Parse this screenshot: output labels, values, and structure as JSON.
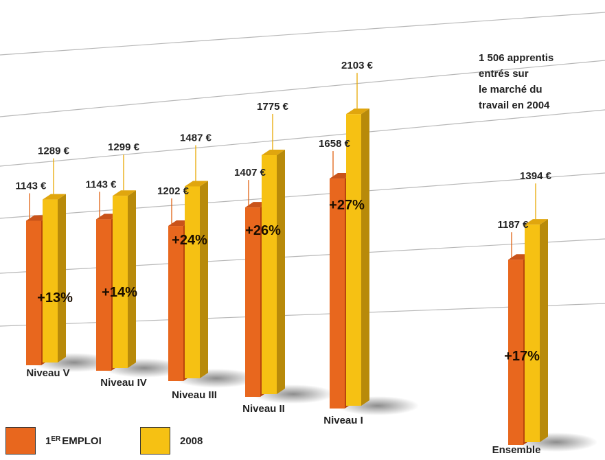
{
  "chart_data": {
    "type": "bar",
    "categories": [
      "Niveau V",
      "Niveau IV",
      "Niveau III",
      "Niveau II",
      "Niveau I",
      "Ensemble"
    ],
    "series": [
      {
        "name": "1ER EMPLOI",
        "values": [
          1143,
          1143,
          1202,
          1407,
          1658,
          1187
        ],
        "labels": [
          "1143 €",
          "1143 €",
          "1202 €",
          "1407 €",
          "1658 €",
          "1187 €"
        ],
        "color": "#e8671e"
      },
      {
        "name": "2008",
        "values": [
          1289,
          1299,
          1487,
          1775,
          2103,
          1394
        ],
        "labels": [
          "1289 €",
          "1299 €",
          "1487 €",
          "1775 €",
          "2103 €",
          "1394 €"
        ],
        "color": "#f6c113"
      }
    ],
    "growth_labels": [
      "+13%",
      "+14%",
      "+24%",
      "+26%",
      "+27%",
      "+17%"
    ],
    "colors": {
      "first_job_front": "#e8671e",
      "first_job_side": "#b8450c",
      "first_job_top": "#c9531a",
      "y2008_front": "#f6c113",
      "y2008_side": "#b88a0a",
      "y2008_top": "#e0a60e",
      "gridline": "#9a9a9a"
    }
  },
  "note": {
    "lines": [
      "1 506 apprentis",
      "entrés sur",
      "le marché du",
      "travail en 2004"
    ]
  },
  "legend": {
    "first_job": {
      "main": "1",
      "sup": "ER",
      "rest": "EMPLOI"
    },
    "year": {
      "label": "2008"
    }
  }
}
